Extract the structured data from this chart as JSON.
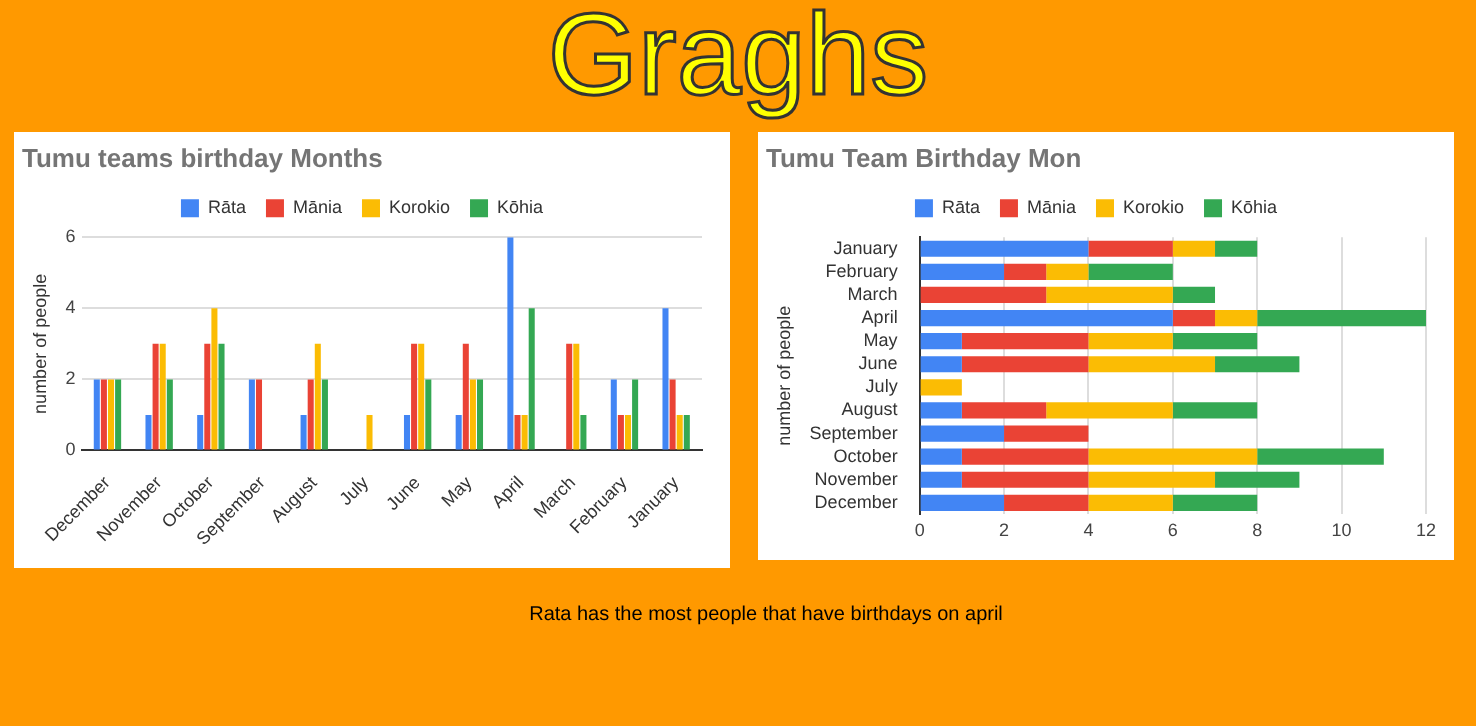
{
  "chart_data": [
    {
      "type": "bar",
      "title": "Tumu teams birthday Months",
      "ylabel": "number of people",
      "annotations": [
        "Graghs",
        "Rata has the most people that have birthdays on april"
      ],
      "categories": [
        "December",
        "November",
        "October",
        "September",
        "August",
        "July",
        "June",
        "May",
        "April",
        "March",
        "February",
        "January"
      ],
      "series": [
        {
          "name": "Rāta",
          "color": "#4285f4",
          "values": [
            2,
            1,
            1,
            2,
            1,
            0,
            1,
            1,
            6,
            0,
            2,
            4
          ]
        },
        {
          "name": "Mānia",
          "color": "#ea4335",
          "values": [
            2,
            3,
            3,
            2,
            2,
            0,
            3,
            3,
            1,
            3,
            1,
            2
          ]
        },
        {
          "name": "Korokio",
          "color": "#fbbc04",
          "values": [
            2,
            3,
            4,
            0,
            3,
            1,
            3,
            2,
            1,
            3,
            1,
            1
          ]
        },
        {
          "name": "Kōhia",
          "color": "#34a853",
          "values": [
            2,
            2,
            3,
            0,
            2,
            0,
            2,
            2,
            4,
            1,
            2,
            1
          ]
        }
      ],
      "ylim": [
        0,
        6
      ],
      "yticks": [
        0,
        2,
        4,
        6
      ],
      "grid": "y",
      "legend": "top"
    },
    {
      "type": "bar",
      "title": "Tumu Team Birthday Mon",
      "ylabel": "number of people",
      "orientation": "horizontal",
      "stacked": true,
      "categories": [
        "January",
        "February",
        "March",
        "April",
        "May",
        "June",
        "July",
        "August",
        "September",
        "October",
        "November",
        "December"
      ],
      "series": [
        {
          "name": "Rāta",
          "color": "#4285f4",
          "values": [
            4,
            2,
            0,
            6,
            1,
            1,
            0,
            1,
            2,
            1,
            1,
            2
          ]
        },
        {
          "name": "Mānia",
          "color": "#ea4335",
          "values": [
            2,
            1,
            3,
            1,
            3,
            3,
            0,
            2,
            2,
            3,
            3,
            2
          ]
        },
        {
          "name": "Korokio",
          "color": "#fbbc04",
          "values": [
            1,
            1,
            3,
            1,
            2,
            3,
            1,
            3,
            0,
            4,
            3,
            2
          ]
        },
        {
          "name": "Kōhia",
          "color": "#34a853",
          "values": [
            1,
            2,
            1,
            4,
            2,
            2,
            0,
            2,
            0,
            3,
            2,
            2
          ]
        }
      ],
      "xlim": [
        0,
        12
      ],
      "xticks": [
        0,
        2,
        4,
        6,
        8,
        10,
        12
      ],
      "grid": "x",
      "legend": "top"
    }
  ]
}
